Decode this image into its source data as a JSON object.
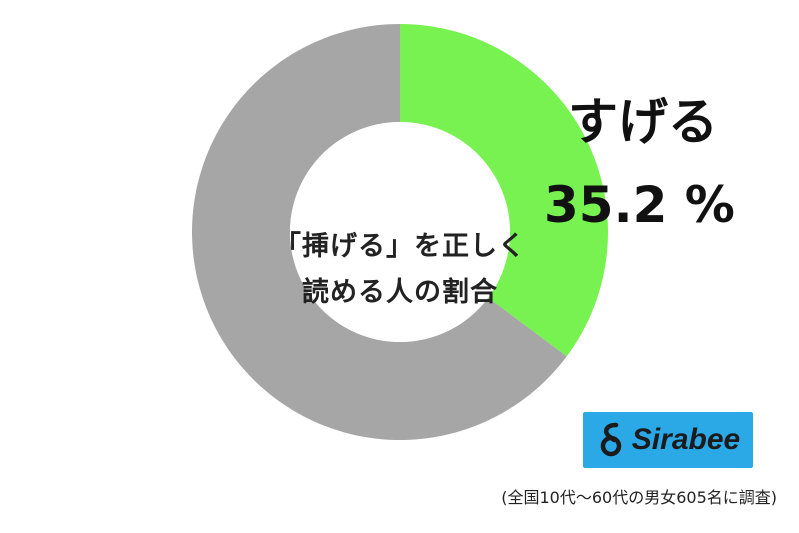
{
  "chart_data": {
    "type": "pie",
    "title": "「挿げる」を正しく読める人の割合",
    "title_lines": [
      "「挿げる」を正しく",
      "読める人の割合"
    ],
    "slices": [
      {
        "label": "すげる",
        "value": 35.2,
        "color": "#77f250"
      },
      {
        "label": "",
        "value": 64.8,
        "color": "#a6a6a6"
      }
    ],
    "highlight": {
      "label": "すげる",
      "value_text": "35.2 %"
    },
    "note": "(全国10代～60代の男女605名に調査)"
  },
  "logo": {
    "text": "Sirabee",
    "background": "#2ba9e6",
    "name": "sirabee-logo"
  }
}
